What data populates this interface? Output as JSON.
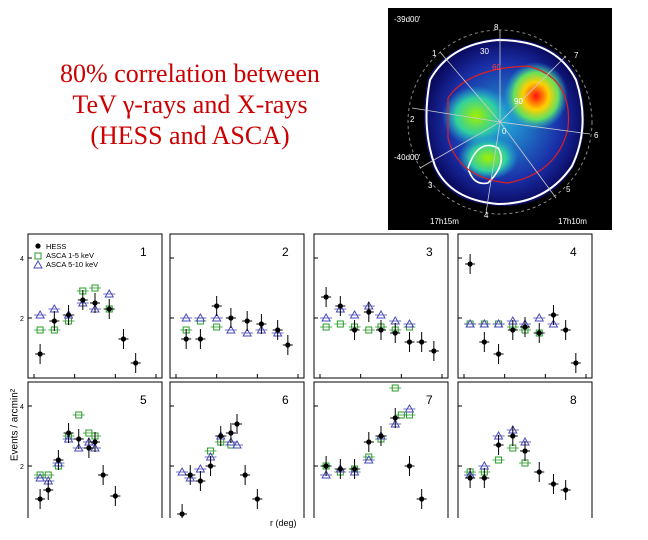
{
  "title": {
    "line1": "80% correlation between",
    "line2": "TeV γ-rays  and X-rays",
    "line3": "(HESS and ASCA)"
  },
  "skymap": {
    "corner_labels": [
      "-39d00'",
      "-40d00'",
      "17h15m",
      "17h10m"
    ],
    "region_labels": [
      "1",
      "2",
      "3",
      "4",
      "5",
      "6",
      "7",
      "8"
    ],
    "contour_labels": [
      "30",
      "60",
      "90",
      "0"
    ]
  },
  "colors": {
    "hess": "#000000",
    "asca1": "#2a9d2a",
    "asca2": "#4a4ab8",
    "title": "#cc0000"
  },
  "chart_data": {
    "type": "scatter",
    "xlabel": "r (deg)",
    "ylabel": "Events / arcmin²",
    "legend": [
      "HESS",
      "ASCA 1-5 keV",
      "ASCA 5-10 keV"
    ],
    "xlim": [
      0,
      0.6
    ],
    "xticks": [
      "0",
      "0.2",
      "0.4",
      "0.6"
    ],
    "yticks": [
      "2",
      "4"
    ],
    "ylim": [
      0,
      4.6
    ],
    "panels": [
      {
        "label": "1",
        "hess": [
          [
            0.03,
            0.8
          ],
          [
            0.1,
            1.9
          ],
          [
            0.17,
            2.1
          ],
          [
            0.24,
            2.6
          ],
          [
            0.3,
            2.5
          ],
          [
            0.37,
            2.3
          ],
          [
            0.44,
            1.3
          ],
          [
            0.5,
            0.5
          ]
        ],
        "asca1": [
          [
            0.03,
            1.6
          ],
          [
            0.1,
            1.6
          ],
          [
            0.17,
            1.9
          ],
          [
            0.24,
            2.9
          ],
          [
            0.3,
            3.0
          ],
          [
            0.37,
            2.3
          ]
        ],
        "asca2": [
          [
            0.03,
            2.1
          ],
          [
            0.1,
            2.3
          ],
          [
            0.17,
            2.1
          ],
          [
            0.24,
            2.5
          ],
          [
            0.3,
            2.3
          ],
          [
            0.37,
            2.8
          ]
        ]
      },
      {
        "label": "2",
        "hess": [
          [
            0.05,
            1.3
          ],
          [
            0.12,
            1.3
          ],
          [
            0.2,
            2.4
          ],
          [
            0.27,
            2.0
          ],
          [
            0.35,
            1.9
          ],
          [
            0.42,
            1.8
          ],
          [
            0.5,
            1.6
          ],
          [
            0.55,
            1.1
          ]
        ],
        "asca1": [
          [
            0.05,
            1.6
          ],
          [
            0.12,
            1.9
          ],
          [
            0.2,
            1.7
          ]
        ],
        "asca2": [
          [
            0.05,
            2.0
          ],
          [
            0.12,
            2.0
          ],
          [
            0.2,
            2.0
          ],
          [
            0.27,
            1.6
          ],
          [
            0.35,
            1.5
          ],
          [
            0.42,
            1.6
          ],
          [
            0.5,
            1.5
          ]
        ]
      },
      {
        "label": "3",
        "hess": [
          [
            0.03,
            2.7
          ],
          [
            0.1,
            2.4
          ],
          [
            0.17,
            1.6
          ],
          [
            0.24,
            2.2
          ],
          [
            0.3,
            1.6
          ],
          [
            0.37,
            1.5
          ],
          [
            0.44,
            1.2
          ],
          [
            0.5,
            1.2
          ],
          [
            0.56,
            0.9
          ]
        ],
        "asca1": [
          [
            0.03,
            1.7
          ],
          [
            0.1,
            1.8
          ],
          [
            0.17,
            1.7
          ],
          [
            0.24,
            1.6
          ],
          [
            0.3,
            1.7
          ],
          [
            0.37,
            1.6
          ],
          [
            0.44,
            1.7
          ]
        ],
        "asca2": [
          [
            0.03,
            2.0
          ],
          [
            0.1,
            2.3
          ],
          [
            0.17,
            2.1
          ],
          [
            0.24,
            2.4
          ],
          [
            0.3,
            2.1
          ],
          [
            0.37,
            1.9
          ],
          [
            0.44,
            1.8
          ]
        ]
      },
      {
        "label": "4",
        "hess": [
          [
            0.03,
            3.8
          ],
          [
            0.1,
            1.2
          ],
          [
            0.17,
            0.8
          ],
          [
            0.24,
            1.6
          ],
          [
            0.3,
            1.7
          ],
          [
            0.37,
            1.5
          ],
          [
            0.44,
            2.1
          ],
          [
            0.5,
            1.6
          ],
          [
            0.55,
            0.5
          ]
        ],
        "asca1": [
          [
            0.03,
            1.8
          ],
          [
            0.1,
            1.8
          ],
          [
            0.17,
            1.8
          ],
          [
            0.24,
            1.7
          ],
          [
            0.3,
            1.6
          ],
          [
            0.37,
            1.5
          ]
        ],
        "asca2": [
          [
            0.03,
            1.8
          ],
          [
            0.1,
            1.8
          ],
          [
            0.17,
            1.8
          ],
          [
            0.24,
            1.9
          ],
          [
            0.3,
            1.8
          ],
          [
            0.37,
            2.0
          ],
          [
            0.44,
            1.8
          ]
        ]
      },
      {
        "label": "5",
        "hess": [
          [
            0.03,
            0.9
          ],
          [
            0.07,
            1.2
          ],
          [
            0.12,
            2.2
          ],
          [
            0.17,
            3.1
          ],
          [
            0.22,
            2.9
          ],
          [
            0.27,
            2.6
          ],
          [
            0.3,
            2.8
          ],
          [
            0.34,
            1.7
          ],
          [
            0.4,
            1.0
          ]
        ],
        "asca1": [
          [
            0.03,
            1.7
          ],
          [
            0.07,
            1.7
          ],
          [
            0.12,
            2.0
          ],
          [
            0.17,
            3.0
          ],
          [
            0.22,
            3.7
          ],
          [
            0.27,
            3.1
          ],
          [
            0.3,
            3.0
          ]
        ],
        "asca2": [
          [
            0.03,
            1.6
          ],
          [
            0.07,
            1.5
          ],
          [
            0.12,
            2.1
          ],
          [
            0.17,
            2.9
          ],
          [
            0.22,
            2.6
          ],
          [
            0.27,
            2.8
          ],
          [
            0.3,
            2.6
          ]
        ]
      },
      {
        "label": "6",
        "hess": [
          [
            0.03,
            0.4
          ],
          [
            0.07,
            1.7
          ],
          [
            0.12,
            1.5
          ],
          [
            0.17,
            2.0
          ],
          [
            0.22,
            3.0
          ],
          [
            0.27,
            3.1
          ],
          [
            0.3,
            3.4
          ],
          [
            0.34,
            1.7
          ],
          [
            0.4,
            0.9
          ]
        ],
        "asca1": [
          [
            0.17,
            2.5
          ],
          [
            0.22,
            2.8
          ],
          [
            0.27,
            2.7
          ]
        ],
        "asca2": [
          [
            0.03,
            1.8
          ],
          [
            0.07,
            1.6
          ],
          [
            0.12,
            1.9
          ],
          [
            0.17,
            2.3
          ],
          [
            0.22,
            3.0
          ],
          [
            0.27,
            2.8
          ],
          [
            0.3,
            2.7
          ]
        ]
      },
      {
        "label": "7",
        "hess": [
          [
            0.03,
            2.0
          ],
          [
            0.1,
            1.9
          ],
          [
            0.17,
            1.9
          ],
          [
            0.24,
            2.8
          ],
          [
            0.3,
            3.0
          ],
          [
            0.37,
            3.6
          ],
          [
            0.44,
            2.0
          ],
          [
            0.5,
            0.9
          ]
        ],
        "asca1": [
          [
            0.03,
            2.0
          ],
          [
            0.1,
            1.8
          ],
          [
            0.17,
            1.9
          ],
          [
            0.24,
            2.3
          ],
          [
            0.3,
            2.9
          ],
          [
            0.37,
            4.6
          ],
          [
            0.44,
            3.7
          ],
          [
            0.4,
            3.7
          ]
        ],
        "asca2": [
          [
            0.03,
            1.7
          ],
          [
            0.1,
            1.9
          ],
          [
            0.17,
            1.8
          ],
          [
            0.24,
            2.2
          ],
          [
            0.3,
            3.0
          ],
          [
            0.37,
            3.4
          ],
          [
            0.44,
            3.9
          ]
        ]
      },
      {
        "label": "8",
        "hess": [
          [
            0.03,
            1.6
          ],
          [
            0.1,
            1.6
          ],
          [
            0.17,
            2.7
          ],
          [
            0.24,
            3.0
          ],
          [
            0.3,
            2.5
          ],
          [
            0.37,
            1.8
          ],
          [
            0.44,
            1.4
          ],
          [
            0.5,
            1.2
          ]
        ],
        "asca1": [
          [
            0.03,
            1.8
          ],
          [
            0.1,
            1.8
          ],
          [
            0.17,
            2.2
          ],
          [
            0.24,
            2.6
          ],
          [
            0.3,
            2.1
          ]
        ],
        "asca2": [
          [
            0.03,
            1.7
          ],
          [
            0.1,
            2.0
          ],
          [
            0.17,
            3.0
          ],
          [
            0.24,
            3.2
          ],
          [
            0.3,
            2.8
          ]
        ]
      }
    ]
  }
}
